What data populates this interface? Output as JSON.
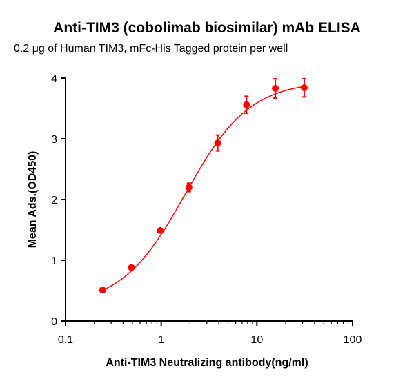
{
  "chart_data": {
    "type": "scatter",
    "title": "Anti-TIM3 (cobolimab biosimilar) mAb ELISA",
    "subtitle": "0.2 μg of Human TIM3, mFc-His Tagged protein per well",
    "xlabel": "Anti-TIM3 Neutralizing antibody(ng/ml)",
    "ylabel": "Mean Ads.(OD450)",
    "xscale": "log",
    "xlim": [
      0.1,
      100
    ],
    "ylim": [
      0,
      4
    ],
    "xticks": [
      "0.1",
      "1",
      "10",
      "100"
    ],
    "yticks": [
      "0",
      "1",
      "2",
      "3",
      "4"
    ],
    "grid": false,
    "color": "#ff0000",
    "fit": "sigmoidal curve",
    "series": [
      {
        "x": [
          0.244,
          0.488,
          0.977,
          1.95,
          3.9,
          7.8,
          15.6,
          31.25
        ],
        "y": [
          0.51,
          0.88,
          1.49,
          2.2,
          2.93,
          3.56,
          3.83,
          3.84
        ],
        "error": [
          0.02,
          0.03,
          0.03,
          0.07,
          0.13,
          0.14,
          0.16,
          0.15
        ]
      }
    ]
  }
}
